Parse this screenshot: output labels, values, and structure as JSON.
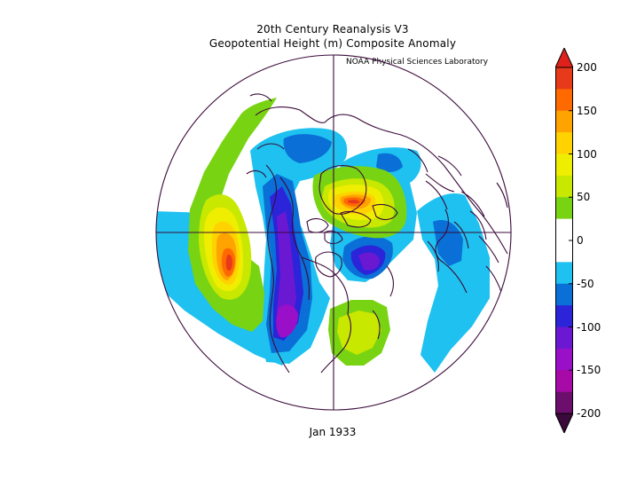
{
  "header": {
    "title_line_1": "20th Century Reanalysis V3",
    "title_line_2": "Geopotential Height (m) Composite Anomaly",
    "source_credit": "NOAA Physical Sciences Laboratory"
  },
  "footer": {
    "date_label": "Jan 1933"
  },
  "map": {
    "projection": "north-polar-stereographic",
    "variable": "geopotential-height-anomaly",
    "units": "m",
    "coastline_color": "#3b0b3b"
  },
  "colorbar": {
    "ticks": [
      "200",
      "150",
      "100",
      "50",
      "0",
      "-50",
      "-100",
      "-150",
      "-200"
    ],
    "segments": [
      {
        "from": 200,
        "to": 175,
        "color": "#e63a1a"
      },
      {
        "from": 175,
        "to": 150,
        "color": "#ff6a00"
      },
      {
        "from": 150,
        "to": 125,
        "color": "#ffa300"
      },
      {
        "from": 125,
        "to": 100,
        "color": "#ffd200"
      },
      {
        "from": 100,
        "to": 75,
        "color": "#f0ee00"
      },
      {
        "from": 75,
        "to": 50,
        "color": "#c8e800"
      },
      {
        "from": 50,
        "to": 25,
        "color": "#78d412"
      },
      {
        "from": 25,
        "to": 0,
        "color": "#ffffff"
      },
      {
        "from": 0,
        "to": -25,
        "color": "#ffffff"
      },
      {
        "from": -25,
        "to": -50,
        "color": "#1ec1ef"
      },
      {
        "from": -50,
        "to": -75,
        "color": "#0a6fd6"
      },
      {
        "from": -75,
        "to": -100,
        "color": "#2b24d8"
      },
      {
        "from": -100,
        "to": -125,
        "color": "#6b18d2"
      },
      {
        "from": -125,
        "to": -150,
        "color": "#9a0fc8"
      },
      {
        "from": -150,
        "to": -175,
        "color": "#a80aa8"
      },
      {
        "from": -175,
        "to": -200,
        "color": "#6c0f6c"
      }
    ],
    "overflow_high_color": "#e0201a",
    "overflow_low_color": "#3a0a3a"
  }
}
